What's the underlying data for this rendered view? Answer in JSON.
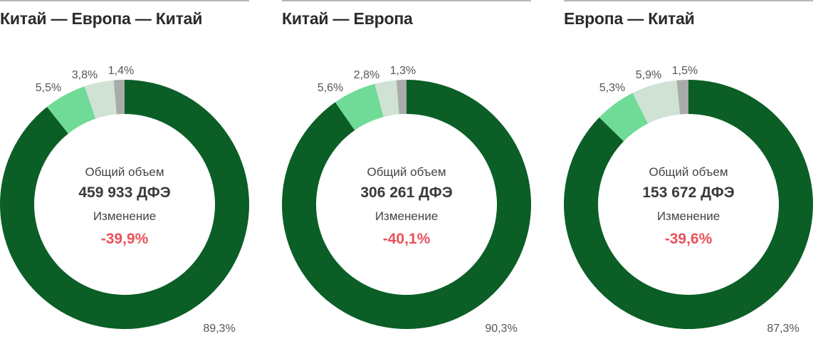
{
  "colors": {
    "main": "#0b5e26",
    "light_green": "#6fdb96",
    "pale": "#cfe2d4",
    "gray": "#a8aba8",
    "change": "#e8525a"
  },
  "labels": {
    "total": "Общий объем",
    "change": "Изменение"
  },
  "chart_data": [
    {
      "type": "pie",
      "title": "Китай — Европа — Китай",
      "total": "459 933 ДФЭ",
      "change": "-39,9%",
      "values": [
        89.3,
        5.5,
        3.8,
        1.4
      ],
      "value_labels": [
        "89,3%",
        "5,5%",
        "3,8%",
        "1,4%"
      ]
    },
    {
      "type": "pie",
      "title": "Китай — Европа",
      "total": "306 261 ДФЭ",
      "change": "-40,1%",
      "values": [
        90.3,
        5.6,
        2.8,
        1.3
      ],
      "value_labels": [
        "90,3%",
        "5,6%",
        "2,8%",
        "1,3%"
      ]
    },
    {
      "type": "pie",
      "title": "Европа — Китай",
      "total": "153 672 ДФЭ",
      "change": "-39,6%",
      "values": [
        87.3,
        5.3,
        5.9,
        1.5
      ],
      "value_labels": [
        "87,3%",
        "5,3%",
        "5,9%",
        "1,5%"
      ]
    }
  ]
}
